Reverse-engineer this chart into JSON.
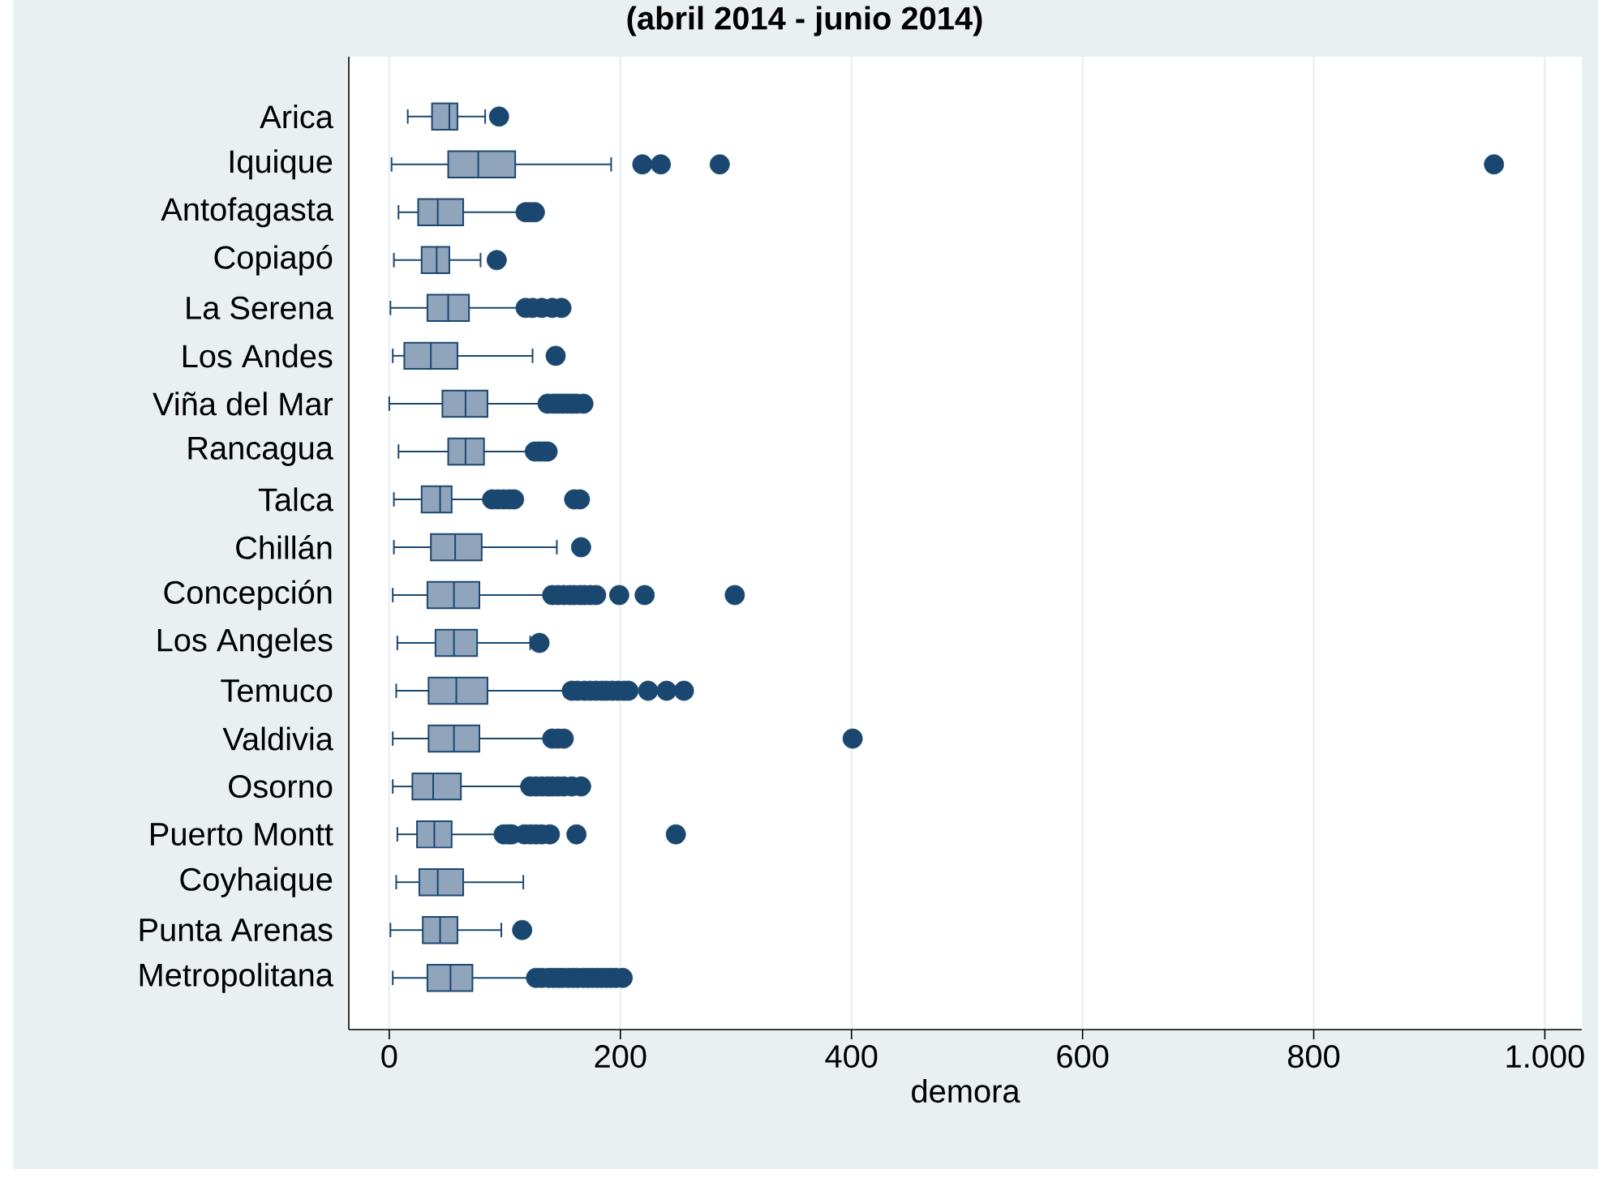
{
  "chart_data": {
    "type": "box",
    "orientation": "horizontal",
    "title": "(abril 2014 - junio 2014)",
    "xlabel": "demora",
    "categories": [
      "Arica",
      "Iquique",
      "Antofagasta",
      "Copiapó",
      "La Serena",
      "Los Andes",
      "Viña del Mar",
      "Rancagua",
      "Talca",
      "Chillán",
      "Concepción",
      "Los Angeles",
      "Temuco",
      "Valdivia",
      "Osorno",
      "Puerto Montt",
      "Coyhaique",
      "Punta Arenas",
      "Metropolitana"
    ],
    "color": "#90a4bc",
    "marker": "circle",
    "grid": "x",
    "xlim": [
      -35,
      1032
    ],
    "xticks": [
      0,
      200,
      400,
      600,
      800,
      {
        "value": 1000,
        "label": "1.000"
      }
    ],
    "boxes": [
      {
        "low": 16,
        "q1": 37,
        "median": 52,
        "q3": 59,
        "high": 83,
        "outliers": [
          95
        ]
      },
      {
        "low": 2,
        "q1": 51,
        "median": 77,
        "q3": 109,
        "high": 192,
        "outliers": [
          219,
          235,
          286,
          956
        ]
      },
      {
        "low": 8,
        "q1": 25,
        "median": 42,
        "q3": 64,
        "high": 112,
        "outliers": [
          118,
          122,
          126
        ]
      },
      {
        "low": 4,
        "q1": 28,
        "median": 41,
        "q3": 52,
        "high": 79,
        "outliers": [
          93
        ]
      },
      {
        "low": 1,
        "q1": 33,
        "median": 51,
        "q3": 69,
        "high": 113,
        "outliers": [
          118,
          124,
          132,
          141,
          149
        ]
      },
      {
        "low": 3,
        "q1": 13,
        "median": 36,
        "q3": 59,
        "high": 124,
        "outliers": [
          144
        ]
      },
      {
        "low": 0,
        "q1": 46,
        "median": 66,
        "q3": 85,
        "high": 132,
        "outliers": [
          137,
          142,
          146,
          150,
          154,
          158,
          162,
          168
        ]
      },
      {
        "low": 8,
        "q1": 51,
        "median": 66,
        "q3": 82,
        "high": 122,
        "outliers": [
          126,
          130,
          134,
          137
        ]
      },
      {
        "low": 4,
        "q1": 28,
        "median": 44,
        "q3": 54,
        "high": 85,
        "outliers": [
          89,
          94,
          99,
          104,
          108,
          160,
          165
        ]
      },
      {
        "low": 4,
        "q1": 36,
        "median": 57,
        "q3": 80,
        "high": 145,
        "outliers": [
          166
        ]
      },
      {
        "low": 3,
        "q1": 33,
        "median": 56,
        "q3": 78,
        "high": 136,
        "outliers": [
          141,
          146,
          151,
          156,
          160,
          165,
          169,
          174,
          179,
          199,
          221,
          299
        ]
      },
      {
        "low": 7,
        "q1": 40,
        "median": 56,
        "q3": 76,
        "high": 122,
        "outliers": [
          130
        ]
      },
      {
        "low": 6,
        "q1": 34,
        "median": 58,
        "q3": 85,
        "high": 152,
        "outliers": [
          158,
          163,
          169,
          174,
          179,
          184,
          188,
          193,
          198,
          203,
          207,
          224,
          240,
          255
        ]
      },
      {
        "low": 3,
        "q1": 34,
        "median": 56,
        "q3": 78,
        "high": 136,
        "outliers": [
          141,
          146,
          151,
          401
        ]
      },
      {
        "low": 3,
        "q1": 20,
        "median": 38,
        "q3": 62,
        "high": 118,
        "outliers": [
          122,
          127,
          132,
          137,
          141,
          146,
          151,
          158,
          166
        ]
      },
      {
        "low": 7,
        "q1": 24,
        "median": 39,
        "q3": 54,
        "high": 94,
        "outliers": [
          99,
          103,
          106,
          117,
          122,
          127,
          132,
          139,
          162,
          248
        ]
      },
      {
        "low": 6,
        "q1": 26,
        "median": 42,
        "q3": 64,
        "high": 116
      },
      {
        "low": 1,
        "q1": 29,
        "median": 44,
        "q3": 59,
        "high": 97,
        "outliers": [
          115
        ]
      },
      {
        "low": 3,
        "q1": 33,
        "median": 53,
        "q3": 72,
        "high": 122,
        "outliers": [
          127,
          132,
          138,
          142,
          146,
          150,
          155,
          159,
          163,
          168,
          172,
          176,
          180,
          184,
          188,
          192,
          196,
          202
        ]
      }
    ]
  }
}
